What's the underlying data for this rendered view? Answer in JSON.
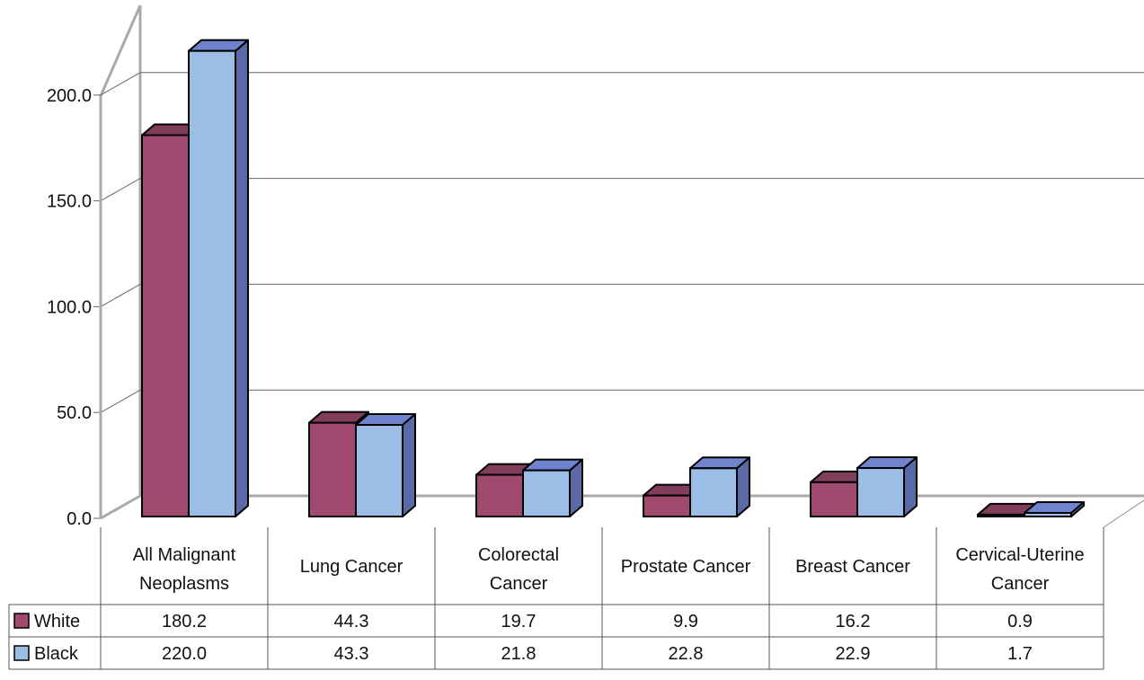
{
  "chart_data": {
    "type": "bar",
    "categories": [
      [
        "All Malignant",
        "Neoplasms"
      ],
      [
        "Lung Cancer"
      ],
      [
        "Colorectal",
        "Cancer"
      ],
      [
        "Prostate Cancer"
      ],
      [
        "Breast Cancer"
      ],
      [
        "Cervical-Uterine",
        "Cancer"
      ]
    ],
    "series": [
      {
        "name": "White",
        "values": [
          180.2,
          44.3,
          19.7,
          9.9,
          16.2,
          0.9
        ],
        "value_labels": [
          "180.2",
          "44.3",
          "19.7",
          "9.9",
          "16.2",
          "0.9"
        ],
        "color": "#9f4a6e"
      },
      {
        "name": "Black",
        "values": [
          220.0,
          43.3,
          21.8,
          22.8,
          22.9,
          1.7
        ],
        "value_labels": [
          "220.0",
          "43.3",
          "21.8",
          "22.8",
          "22.9",
          "1.7"
        ],
        "color": "#9bbde6"
      }
    ],
    "y_ticks": [
      "0.0",
      "50.0",
      "100.0",
      "150.0",
      "200.0"
    ],
    "ylim": [
      0,
      250
    ],
    "grid": true,
    "three_d": true,
    "legend": "data-table",
    "title": "",
    "xlabel": "",
    "ylabel": ""
  }
}
